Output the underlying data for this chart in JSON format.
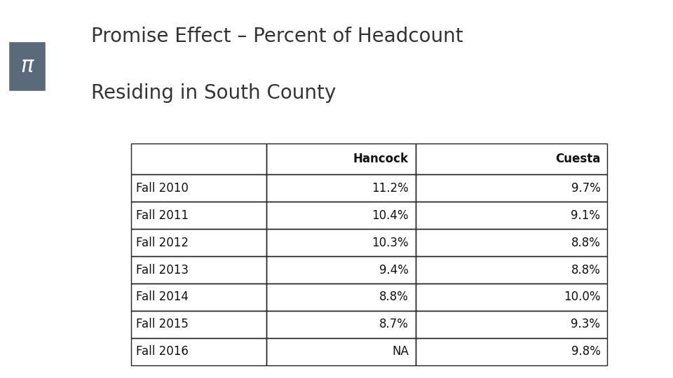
{
  "title_line1": "Promise Effect – Percent of Headcount",
  "title_line2": "Residing in South County",
  "title_fontsize": 20,
  "pi_symbol": "π",
  "sidebar_color": "#8a9ab5",
  "pi_box_color": "#5a6a7a",
  "background_color": "#ffffff",
  "table_text_color": "#111111",
  "headers": [
    "",
    "Hancock",
    "Cuesta"
  ],
  "rows": [
    [
      "Fall 2010",
      "11.2%",
      "9.7%"
    ],
    [
      "Fall 2011",
      "10.4%",
      "9.1%"
    ],
    [
      "Fall 2012",
      "10.3%",
      "8.8%"
    ],
    [
      "Fall 2013",
      "9.4%",
      "8.8%"
    ],
    [
      "Fall 2014",
      "8.8%",
      "10.0%"
    ],
    [
      "Fall 2015",
      "8.7%",
      "9.3%"
    ],
    [
      "Fall 2016",
      "NA",
      "9.8%"
    ]
  ],
  "font_size_table": 12,
  "font_size_header": 12,
  "right_sidebar_color": "#8a9ab5"
}
